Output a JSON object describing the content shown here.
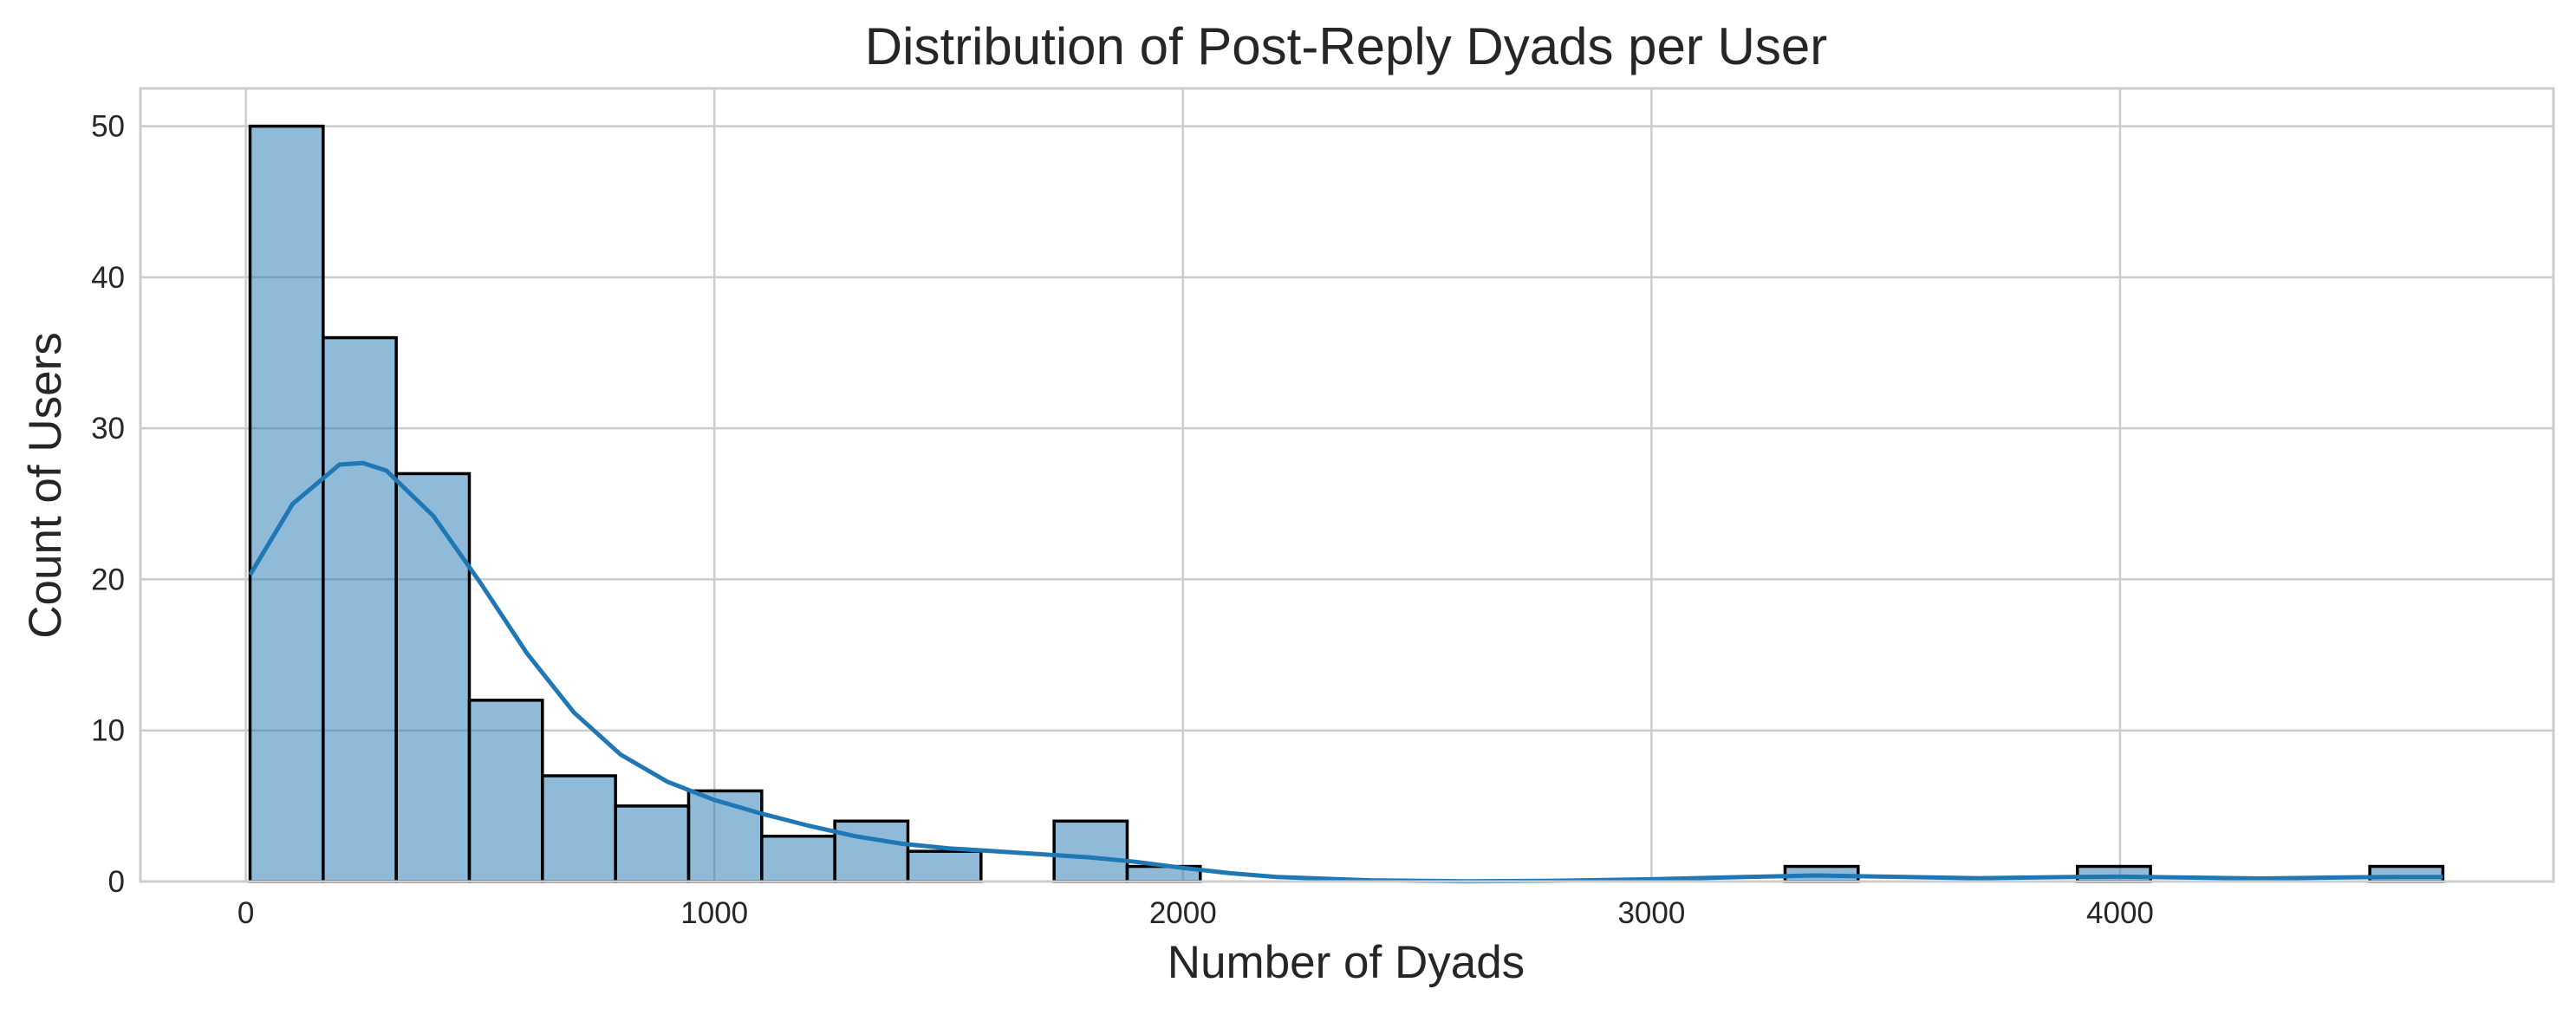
{
  "chart_data": {
    "type": "bar",
    "subtype": "histogram",
    "title": "Distribution of Post-Reply Dyads per User",
    "xlabel": "Number of Dyads",
    "ylabel": "Count of Users",
    "xlim": [
      -225,
      4925
    ],
    "ylim": [
      0,
      52.5
    ],
    "xticks": [
      0,
      1000,
      2000,
      3000,
      4000
    ],
    "yticks": [
      0,
      10,
      20,
      30,
      40,
      50
    ],
    "grid": true,
    "bar_color": "#1f77b4",
    "kde_color": "#1f77b4",
    "bins": [
      {
        "x0": 9,
        "x1": 165,
        "count": 50
      },
      {
        "x0": 165,
        "x1": 321,
        "count": 36
      },
      {
        "x0": 321,
        "x1": 477,
        "count": 27
      },
      {
        "x0": 477,
        "x1": 633,
        "count": 12
      },
      {
        "x0": 633,
        "x1": 789,
        "count": 7
      },
      {
        "x0": 789,
        "x1": 945,
        "count": 5
      },
      {
        "x0": 945,
        "x1": 1101,
        "count": 6
      },
      {
        "x0": 1101,
        "x1": 1257,
        "count": 3
      },
      {
        "x0": 1257,
        "x1": 1413,
        "count": 4
      },
      {
        "x0": 1413,
        "x1": 1569,
        "count": 2
      },
      {
        "x0": 1725,
        "x1": 1881,
        "count": 4
      },
      {
        "x0": 1881,
        "x1": 2037,
        "count": 1
      },
      {
        "x0": 3285,
        "x1": 3441,
        "count": 1
      },
      {
        "x0": 3909,
        "x1": 4065,
        "count": 1
      },
      {
        "x0": 4533,
        "x1": 4689,
        "count": 1
      }
    ],
    "kde": {
      "x": [
        9,
        100,
        200,
        250,
        300,
        400,
        500,
        600,
        700,
        800,
        900,
        1000,
        1100,
        1200,
        1300,
        1400,
        1500,
        1600,
        1700,
        1800,
        1900,
        2000,
        2100,
        2200,
        2400,
        2600,
        2800,
        3000,
        3200,
        3350,
        3500,
        3700,
        3900,
        4000,
        4100,
        4300,
        4500,
        4600,
        4689
      ],
      "y": [
        20.3,
        25.0,
        27.6,
        27.7,
        27.2,
        24.2,
        19.8,
        15.1,
        11.2,
        8.4,
        6.6,
        5.4,
        4.5,
        3.7,
        3.0,
        2.5,
        2.2,
        2.0,
        1.8,
        1.6,
        1.3,
        0.9,
        0.55,
        0.3,
        0.08,
        0.02,
        0.05,
        0.15,
        0.3,
        0.4,
        0.32,
        0.22,
        0.3,
        0.32,
        0.28,
        0.2,
        0.28,
        0.3,
        0.3
      ]
    }
  }
}
